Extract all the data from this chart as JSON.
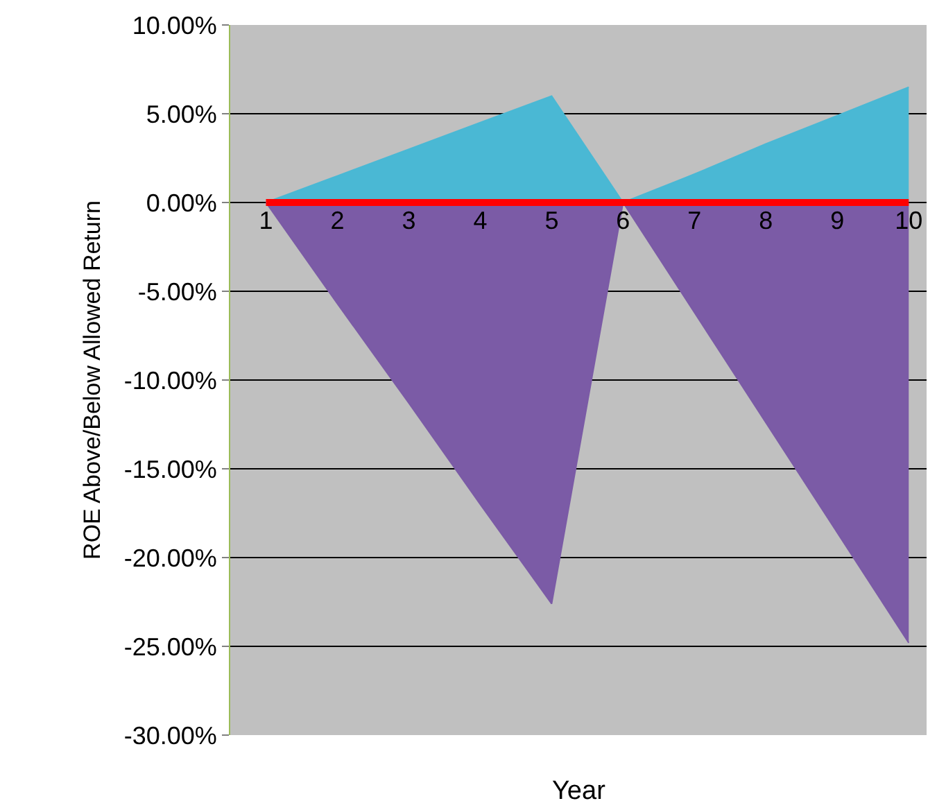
{
  "chart_data": {
    "type": "area",
    "xlabel": "Year",
    "ylabel": "ROE Above/Below Allowed Return",
    "categories": [
      "1",
      "2",
      "3",
      "4",
      "5",
      "6",
      "7",
      "8",
      "9",
      "10"
    ],
    "series": [
      {
        "color": "#4ab8d4",
        "values": [
          0,
          1.5,
          3,
          4.5,
          6,
          0,
          1.6,
          3.3,
          4.9,
          6.5
        ]
      },
      {
        "color": "#7b5ba6",
        "values": [
          0,
          -5.7,
          -11.3,
          -17.0,
          -22.6,
          0,
          -6.2,
          -12.4,
          -18.6,
          -24.8
        ]
      },
      {
        "type": "line",
        "color": "#ff0000",
        "values": [
          0,
          0,
          0,
          0,
          0,
          0,
          0,
          0,
          0,
          0
        ]
      }
    ],
    "ylim": [
      -30,
      10
    ],
    "yticks": [
      {
        "value": 10,
        "label": "10.00%"
      },
      {
        "value": 5,
        "label": "5.00%"
      },
      {
        "value": 0,
        "label": "0.00%"
      },
      {
        "value": -5,
        "label": "-5.00%"
      },
      {
        "value": -10,
        "label": "-10.00%"
      },
      {
        "value": -15,
        "label": "-15.00%"
      },
      {
        "value": -20,
        "label": "-20.00%"
      },
      {
        "value": -25,
        "label": "-25.00%"
      },
      {
        "value": -30,
        "label": "-30.00%"
      }
    ],
    "grid": "y",
    "marker": "none",
    "line_style": "solid"
  }
}
